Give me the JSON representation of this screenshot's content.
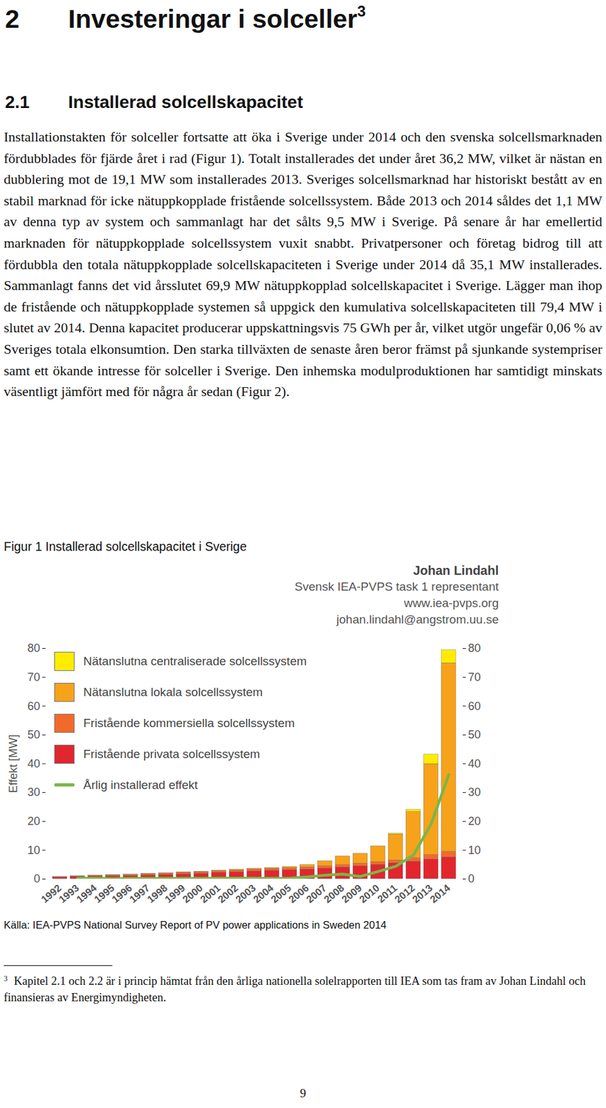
{
  "document": {
    "section_heading": {
      "number": "2",
      "text": "Investeringar i solceller",
      "footnote_ref": "3"
    },
    "subsection_heading": {
      "number": "2.1",
      "text": "Installerad solcellskapacitet"
    },
    "paragraph": "Installationstakten för solceller fortsatte att öka i Sverige under 2014 och den svenska solcellsmarknaden fördubblades för fjärde året i rad (Figur 1). Totalt installerades det under året 36,2 MW, vilket är nästan en dubblering mot de 19,1 MW som installerades 2013. Sveriges solcellsmarknad har historiskt bestått av en stabil marknad för icke nätuppkopplade fristående solcellssystem. Både 2013 och 2014 såldes det 1,1 MW av denna typ av system och sammanlagt har det sålts 9,5 MW i Sverige. På senare år har emellertid marknaden för nätuppkopplade solcellssystem vuxit snabbt. Privatpersoner och företag bidrog till att fördubbla den totala nätuppkopplade solcellskapaciteten i Sverige under 2014 då 35,1 MW installerades. Sammanlagt fanns det vid årsslutet 69,9 MW nätuppkopplad solcellskapacitet i Sverige. Lägger man ihop de fristående och nätuppkopplade systemen så uppgick den kumulativa solcellskapaciteten till 79,4 MW i slutet av 2014. Denna kapacitet producerar uppskattningsvis 75 GWh per år, vilket utgör ungefär 0,06 % av Sveriges totala elkonsumtion. Den starka tillväxten de senaste åren beror främst på sjunkande systempriser samt ett ökande intresse för solceller i Sverige. Den inhemska modulproduktionen har samtidigt minskats väsentligt jämfört med för några år sedan (Figur 2).",
    "source": "Källa: IEA-PVPS National Survey Report of PV power applications in Sweden 2014",
    "footnote": {
      "mark": "3",
      "text": "Kapitel 2.1 och 2.2 är i princip hämtat från den årliga nationella solelrapporten till IEA som tas fram av Johan Lindahl och finansieras av Energimyndigheten."
    },
    "page_number": "9"
  },
  "chart_data": {
    "type": "bar",
    "title": "Figur 1 Installerad solcellskapacitet i Sverige",
    "annotations": [
      "Johan Lindahl",
      "Svensk IEA-PVPS task 1 representant",
      "www.iea-pvps.org",
      "johan.lindahl@angstrom.uu.se"
    ],
    "ylabel": "Effekt [MW]",
    "stacked": true,
    "grid": false,
    "legend": "top-left",
    "categories": [
      "1992",
      "1993",
      "1994",
      "1995",
      "1996",
      "1997",
      "1998",
      "1999",
      "2000",
      "2001",
      "2002",
      "2003",
      "2004",
      "2005",
      "2006",
      "2007",
      "2008",
      "2009",
      "2010",
      "2011",
      "2012",
      "2013",
      "2014"
    ],
    "ylim": [
      0,
      80
    ],
    "yticks": [
      0,
      10,
      20,
      30,
      40,
      50,
      60,
      70,
      80
    ],
    "series": [
      {
        "name": "Nätanslutna centraliserade solcellssystem",
        "type": "bar",
        "color": "#ffec00",
        "values": [
          0,
          0,
          0,
          0,
          0,
          0,
          0,
          0,
          0,
          0,
          0,
          0,
          0,
          0,
          0,
          0,
          0,
          0,
          0,
          0.3,
          0.8,
          3.3,
          4.5
        ]
      },
      {
        "name": "Nätanslutna lokala solcellssystem",
        "type": "bar",
        "color": "#f7a21b",
        "values": [
          0,
          0.1,
          0.1,
          0.1,
          0.2,
          0.2,
          0.2,
          0.2,
          0.2,
          0.3,
          0.3,
          0.3,
          0.4,
          0.4,
          0.8,
          1.7,
          3.0,
          3.4,
          5.5,
          9.0,
          16.0,
          31.5,
          65.4
        ]
      },
      {
        "name": "Fristående kommersiella solcellssystem",
        "type": "bar",
        "color": "#f26a2b",
        "values": [
          0.2,
          0.2,
          0.3,
          0.3,
          0.3,
          0.4,
          0.4,
          0.5,
          0.5,
          0.5,
          0.6,
          0.6,
          0.6,
          0.7,
          0.7,
          0.8,
          0.8,
          0.9,
          0.9,
          1.0,
          1.2,
          1.6,
          1.9
        ]
      },
      {
        "name": "Fristående privata solcellssystem",
        "type": "bar",
        "color": "#e1262e",
        "values": [
          0.6,
          0.7,
          0.9,
          1.0,
          1.1,
          1.3,
          1.5,
          1.7,
          1.9,
          2.2,
          2.4,
          2.7,
          2.9,
          3.1,
          3.4,
          3.7,
          4.1,
          4.5,
          5.0,
          5.5,
          6.1,
          6.8,
          7.6
        ]
      },
      {
        "name": "Årlig installerad effekt",
        "type": "line",
        "color": "#7ab648",
        "values": [
          null,
          0.2,
          0.3,
          0.1,
          0.2,
          0.2,
          0.2,
          0.2,
          0.2,
          0.3,
          0.3,
          0.3,
          0.2,
          0.3,
          0.7,
          1.3,
          1.7,
          0.9,
          2.6,
          4.4,
          8.3,
          19.1,
          36.2
        ]
      }
    ]
  }
}
